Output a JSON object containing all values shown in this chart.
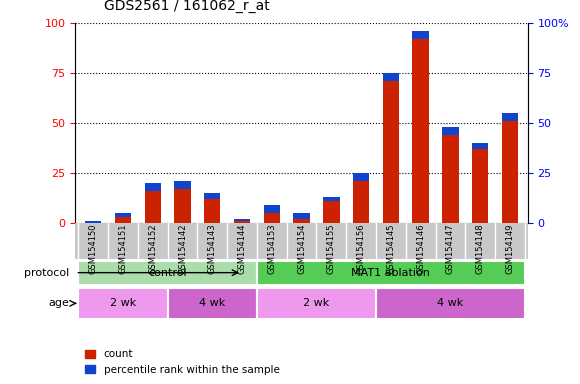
{
  "title": "GDS2561 / 161062_r_at",
  "categories": [
    "GSM154150",
    "GSM154151",
    "GSM154152",
    "GSM154142",
    "GSM154143",
    "GSM154144",
    "GSM154153",
    "GSM154154",
    "GSM154155",
    "GSM154156",
    "GSM154145",
    "GSM154146",
    "GSM154147",
    "GSM154148",
    "GSM154149"
  ],
  "red_values": [
    1,
    5,
    20,
    21,
    15,
    2,
    9,
    5,
    13,
    25,
    75,
    96,
    48,
    40,
    55
  ],
  "blue_cap_height": [
    3,
    2,
    4,
    4,
    3,
    1,
    4,
    3,
    2,
    4,
    4,
    4,
    4,
    3,
    4
  ],
  "ylim": [
    0,
    100
  ],
  "yticks": [
    0,
    25,
    50,
    75,
    100
  ],
  "red_color": "#cc2200",
  "blue_color": "#1144cc",
  "bar_width": 0.55,
  "protocol_groups": [
    {
      "label": "control",
      "start": 0,
      "end": 6,
      "color": "#aaddaa"
    },
    {
      "label": "MAT1 ablation",
      "start": 6,
      "end": 15,
      "color": "#55cc55"
    }
  ],
  "age_groups": [
    {
      "label": "2 wk",
      "start": 0,
      "end": 3,
      "color": "#ee99ee"
    },
    {
      "label": "4 wk",
      "start": 3,
      "end": 6,
      "color": "#cc66cc"
    },
    {
      "label": "2 wk",
      "start": 6,
      "end": 10,
      "color": "#ee99ee"
    },
    {
      "label": "4 wk",
      "start": 10,
      "end": 15,
      "color": "#cc66cc"
    }
  ],
  "legend_items": [
    {
      "label": "count",
      "color": "#cc2200"
    },
    {
      "label": "percentile rank within the sample",
      "color": "#1144cc"
    }
  ],
  "xticklabel_bg": "#c8c8c8",
  "right_axis_pct_labels": [
    "0",
    "25",
    "50",
    "75",
    "100%"
  ]
}
